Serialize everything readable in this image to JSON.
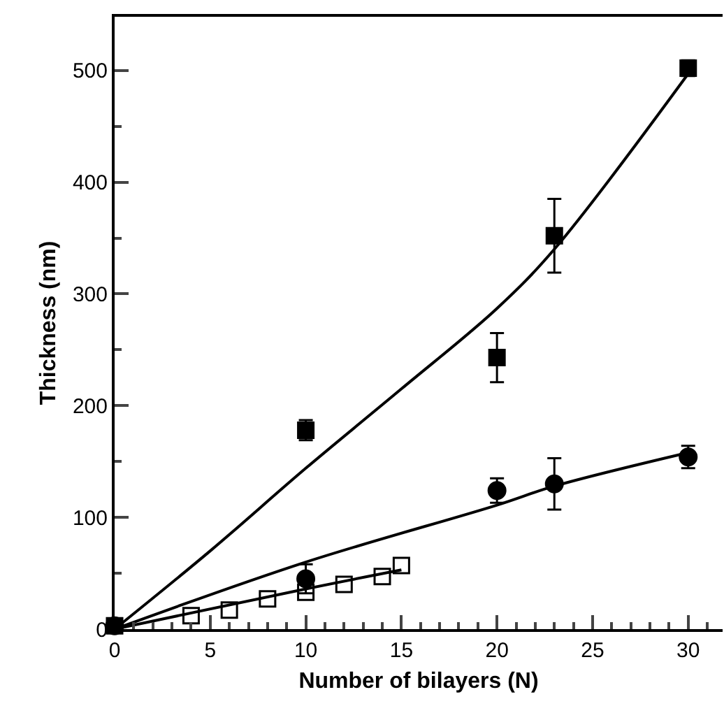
{
  "chart_data": {
    "type": "scatter",
    "xlabel": "Number of bilayers (N)",
    "ylabel": "Thickness (nm)",
    "xlim": [
      0,
      31.8
    ],
    "ylim": [
      0,
      548
    ],
    "xticks": [
      0,
      5,
      10,
      15,
      20,
      25,
      30
    ],
    "yticks": [
      0,
      100,
      200,
      300,
      400,
      500
    ],
    "series": [
      {
        "marker": "square",
        "color": "#000000",
        "x": [
          0,
          10,
          20,
          23,
          30
        ],
        "values": [
          3,
          178,
          243,
          352,
          502
        ],
        "errors": [
          null,
          9,
          22,
          33,
          7
        ]
      },
      {
        "marker": "circle",
        "color": "#000000",
        "x": [
          0,
          10,
          20,
          23,
          30
        ],
        "values": [
          3,
          45,
          124,
          130,
          154
        ],
        "errors": [
          null,
          13,
          11,
          23,
          10
        ]
      },
      {
        "marker": "square-open",
        "color": "#000000",
        "x": [
          4,
          6,
          8,
          10,
          12,
          14,
          15
        ],
        "values": [
          12,
          17,
          27,
          33,
          40,
          47,
          57
        ]
      },
      {
        "type": "line",
        "marker": "none",
        "line_style": "solid",
        "color": "#000000",
        "x": [
          0,
          5,
          10,
          15,
          20,
          23,
          30
        ],
        "values": [
          0,
          70,
          144,
          215,
          287,
          340,
          497
        ]
      },
      {
        "type": "line",
        "marker": "none",
        "line_style": "solid",
        "color": "#000000",
        "x": [
          0,
          10,
          20,
          23,
          30
        ],
        "values": [
          0,
          60,
          111,
          128,
          158
        ]
      },
      {
        "type": "line",
        "marker": "none",
        "line_style": "solid",
        "color": "#000000",
        "x": [
          0,
          10,
          15
        ],
        "values": [
          0,
          36,
          53
        ]
      }
    ]
  }
}
